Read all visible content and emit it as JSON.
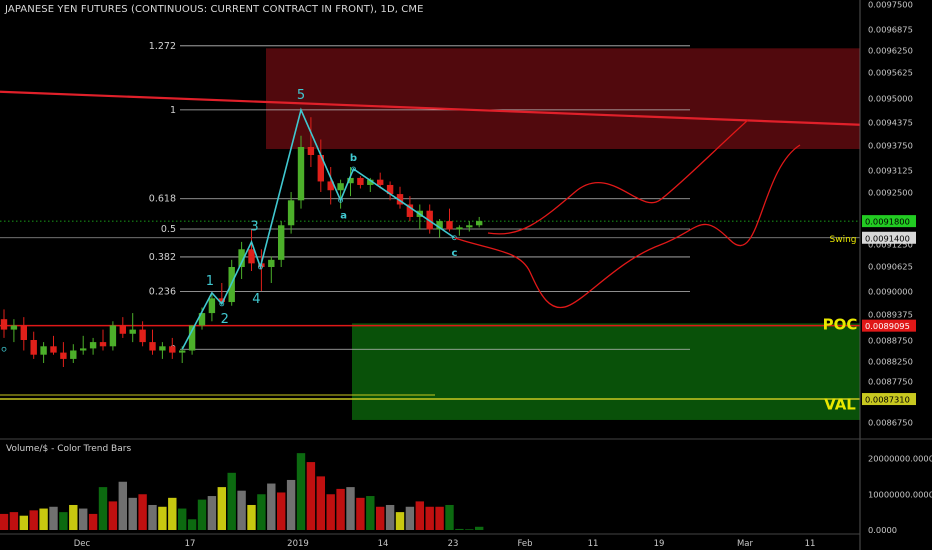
{
  "header": {
    "title": "JAPANESE YEN FUTURES (CONTINUOUS: CURRENT CONTRACT IN FRONT), 1D, CME"
  },
  "volume_panel": {
    "title": "Volume/$ - Color Trend Bars"
  },
  "colors": {
    "background": "#000000",
    "bull": "#4caf2a",
    "bear": "#e0201a",
    "fib_line": "#bdbdbd",
    "wave_line": "#40c8d0",
    "resistance_line": "#e0202a",
    "forecast": "#e01818",
    "red_zone": "#5a0a0e",
    "green_zone": "#0a5a0a",
    "poc_line": "#e01818",
    "val_line": "#c8c820",
    "current_price_line": "#22cc22",
    "vol_green": "#0c6a10",
    "vol_red": "#c01010",
    "vol_yellow": "#c8c810",
    "vol_gray": "#707070",
    "label_text": "#e8e800"
  },
  "chart_data": {
    "type": "candlestick",
    "y_axis": {
      "ticks": [
        "0.0097500",
        "0.0096875",
        "0.0096250",
        "0.0095625",
        "0.0095000",
        "0.0094375",
        "0.0093750",
        "0.0093125",
        "0.0092500",
        "0.0091875",
        "0.0091250",
        "0.0090625",
        "0.0090000",
        "0.0089375",
        "0.0088750",
        "0.0088250",
        "0.0087750",
        "0.0086750"
      ],
      "tick_values": [
        0.00975,
        0.0096875,
        0.009625,
        0.0095625,
        0.0095,
        0.0094375,
        0.009375,
        0.0093125,
        0.00925,
        0.0091875,
        0.009125,
        0.0090625,
        0.009,
        0.0089375,
        0.008875,
        0.008825,
        0.008775,
        0.008675
      ],
      "range": [
        0.00865,
        0.00977
      ]
    },
    "x_axis": {
      "ticks": [
        "Dec",
        "17",
        "2019",
        "14",
        "23",
        "Feb",
        "11",
        "19",
        "Mar",
        "11"
      ]
    },
    "price_labels": [
      {
        "name": "current",
        "value": "0.0091800",
        "price": 0.00918
      },
      {
        "name": "swing",
        "value": "0.0091400",
        "price": 0.00914
      },
      {
        "name": "poc",
        "value": "0.0089095",
        "price": 0.0089095
      },
      {
        "name": "val",
        "value": "0.0087310",
        "price": 0.008731
      }
    ],
    "zone_labels": {
      "poc": "POC",
      "val": "VAL",
      "swing": "Swing"
    },
    "fib_levels": [
      {
        "label": "1.272",
        "price": 0.0096375
      },
      {
        "label": "1",
        "price": 0.009469
      },
      {
        "label": "0.618",
        "price": 0.0092338
      },
      {
        "label": "0.5",
        "price": 0.009161
      },
      {
        "label": "0.382",
        "price": 0.0090882
      },
      {
        "label": "0.236",
        "price": 0.0089983
      },
      {
        "label": "0",
        "price": 0.008853
      }
    ],
    "wave_labels": [
      "1",
      "2",
      "3",
      "4",
      "5",
      "a",
      "b",
      "c"
    ],
    "candles": [
      {
        "o": 0.008925,
        "h": 0.00895,
        "l": 0.00888,
        "c": 0.0089,
        "v": 4.5
      },
      {
        "o": 0.0089,
        "h": 0.008925,
        "l": 0.00887,
        "c": 0.00891,
        "v": 5.0
      },
      {
        "o": 0.00891,
        "h": 0.00893,
        "l": 0.00885,
        "c": 0.008875,
        "v": 4.0
      },
      {
        "o": 0.008875,
        "h": 0.008895,
        "l": 0.00883,
        "c": 0.00884,
        "v": 5.5
      },
      {
        "o": 0.00884,
        "h": 0.00887,
        "l": 0.00882,
        "c": 0.00886,
        "v": 6.0
      },
      {
        "o": 0.00886,
        "h": 0.008885,
        "l": 0.00884,
        "c": 0.008845,
        "v": 6.5
      },
      {
        "o": 0.008845,
        "h": 0.00887,
        "l": 0.00881,
        "c": 0.00883,
        "v": 5.0
      },
      {
        "o": 0.00883,
        "h": 0.008865,
        "l": 0.00882,
        "c": 0.00885,
        "v": 7.0
      },
      {
        "o": 0.00885,
        "h": 0.008885,
        "l": 0.00884,
        "c": 0.008855,
        "v": 6.0
      },
      {
        "o": 0.008855,
        "h": 0.00888,
        "l": 0.00884,
        "c": 0.00887,
        "v": 4.5
      },
      {
        "o": 0.00887,
        "h": 0.0089,
        "l": 0.00885,
        "c": 0.00886,
        "v": 12.0
      },
      {
        "o": 0.00886,
        "h": 0.00892,
        "l": 0.00885,
        "c": 0.00891,
        "v": 8.0
      },
      {
        "o": 0.00891,
        "h": 0.00893,
        "l": 0.00888,
        "c": 0.00889,
        "v": 13.5
      },
      {
        "o": 0.00889,
        "h": 0.00894,
        "l": 0.00887,
        "c": 0.0089,
        "v": 9.0
      },
      {
        "o": 0.0089,
        "h": 0.00892,
        "l": 0.00886,
        "c": 0.00887,
        "v": 10.0
      },
      {
        "o": 0.00887,
        "h": 0.0089,
        "l": 0.00884,
        "c": 0.00885,
        "v": 7.0
      },
      {
        "o": 0.00885,
        "h": 0.00887,
        "l": 0.00883,
        "c": 0.00886,
        "v": 6.5
      },
      {
        "o": 0.00886,
        "h": 0.00888,
        "l": 0.00883,
        "c": 0.008845,
        "v": 9.0
      },
      {
        "o": 0.008845,
        "h": 0.00886,
        "l": 0.00882,
        "c": 0.00885,
        "v": 6.0
      },
      {
        "o": 0.00885,
        "h": 0.00891,
        "l": 0.00884,
        "c": 0.00891,
        "v": 3.0
      },
      {
        "o": 0.00891,
        "h": 0.008955,
        "l": 0.0089,
        "c": 0.00894,
        "v": 8.5
      },
      {
        "o": 0.00894,
        "h": 0.00899,
        "l": 0.00892,
        "c": 0.00898,
        "v": 9.5
      },
      {
        "o": 0.00898,
        "h": 0.00902,
        "l": 0.008965,
        "c": 0.00897,
        "v": 12.0
      },
      {
        "o": 0.00897,
        "h": 0.00908,
        "l": 0.00896,
        "c": 0.00906,
        "v": 16.0
      },
      {
        "o": 0.00906,
        "h": 0.00913,
        "l": 0.00903,
        "c": 0.00911,
        "v": 11.0
      },
      {
        "o": 0.00911,
        "h": 0.00916,
        "l": 0.00905,
        "c": 0.00907,
        "v": 7.0
      },
      {
        "o": 0.00907,
        "h": 0.00911,
        "l": 0.009,
        "c": 0.00906,
        "v": 10.0
      },
      {
        "o": 0.00906,
        "h": 0.00909,
        "l": 0.00902,
        "c": 0.00908,
        "v": 13.0
      },
      {
        "o": 0.00908,
        "h": 0.00918,
        "l": 0.00906,
        "c": 0.00917,
        "v": 10.5
      },
      {
        "o": 0.00917,
        "h": 0.00925,
        "l": 0.00915,
        "c": 0.00923,
        "v": 14.0
      },
      {
        "o": 0.00923,
        "h": 0.0094,
        "l": 0.00921,
        "c": 0.00937,
        "v": 21.5
      },
      {
        "o": 0.00937,
        "h": 0.00945,
        "l": 0.00932,
        "c": 0.00935,
        "v": 19.0
      },
      {
        "o": 0.00935,
        "h": 0.00939,
        "l": 0.00925,
        "c": 0.00928,
        "v": 15.0
      },
      {
        "o": 0.00928,
        "h": 0.00932,
        "l": 0.00922,
        "c": 0.009255,
        "v": 10.0
      },
      {
        "o": 0.009255,
        "h": 0.009285,
        "l": 0.00921,
        "c": 0.009275,
        "v": 11.5
      },
      {
        "o": 0.009275,
        "h": 0.00932,
        "l": 0.00924,
        "c": 0.00929,
        "v": 12.0
      },
      {
        "o": 0.00929,
        "h": 0.009295,
        "l": 0.00926,
        "c": 0.00927,
        "v": 9.0
      },
      {
        "o": 0.00927,
        "h": 0.00929,
        "l": 0.00925,
        "c": 0.009285,
        "v": 9.5
      },
      {
        "o": 0.009285,
        "h": 0.009305,
        "l": 0.00926,
        "c": 0.00927,
        "v": 6.5
      },
      {
        "o": 0.00927,
        "h": 0.00928,
        "l": 0.00923,
        "c": 0.009245,
        "v": 7.0
      },
      {
        "o": 0.009245,
        "h": 0.009265,
        "l": 0.00921,
        "c": 0.00922,
        "v": 5.0
      },
      {
        "o": 0.00922,
        "h": 0.00924,
        "l": 0.00918,
        "c": 0.00919,
        "v": 6.5
      },
      {
        "o": 0.00919,
        "h": 0.00922,
        "l": 0.00916,
        "c": 0.009205,
        "v": 8.0
      },
      {
        "o": 0.009205,
        "h": 0.00922,
        "l": 0.00915,
        "c": 0.00916,
        "v": 6.5
      },
      {
        "o": 0.00916,
        "h": 0.009185,
        "l": 0.00914,
        "c": 0.00918,
        "v": 6.5
      },
      {
        "o": 0.00918,
        "h": 0.00921,
        "l": 0.009155,
        "c": 0.00916,
        "v": 7.0
      },
      {
        "o": 0.00916,
        "h": 0.00917,
        "l": 0.009145,
        "c": 0.009165,
        "v": 0.3
      },
      {
        "o": 0.009165,
        "h": 0.00918,
        "l": 0.009155,
        "c": 0.00917,
        "v": 0.2
      },
      {
        "o": 0.00917,
        "h": 0.00919,
        "l": 0.009165,
        "c": 0.00918,
        "v": 0.9
      }
    ],
    "volume_axis": {
      "ticks": [
        "20000000.0000",
        "10000000.0000",
        "0.0000"
      ],
      "values": [
        20,
        10,
        0
      ]
    }
  }
}
